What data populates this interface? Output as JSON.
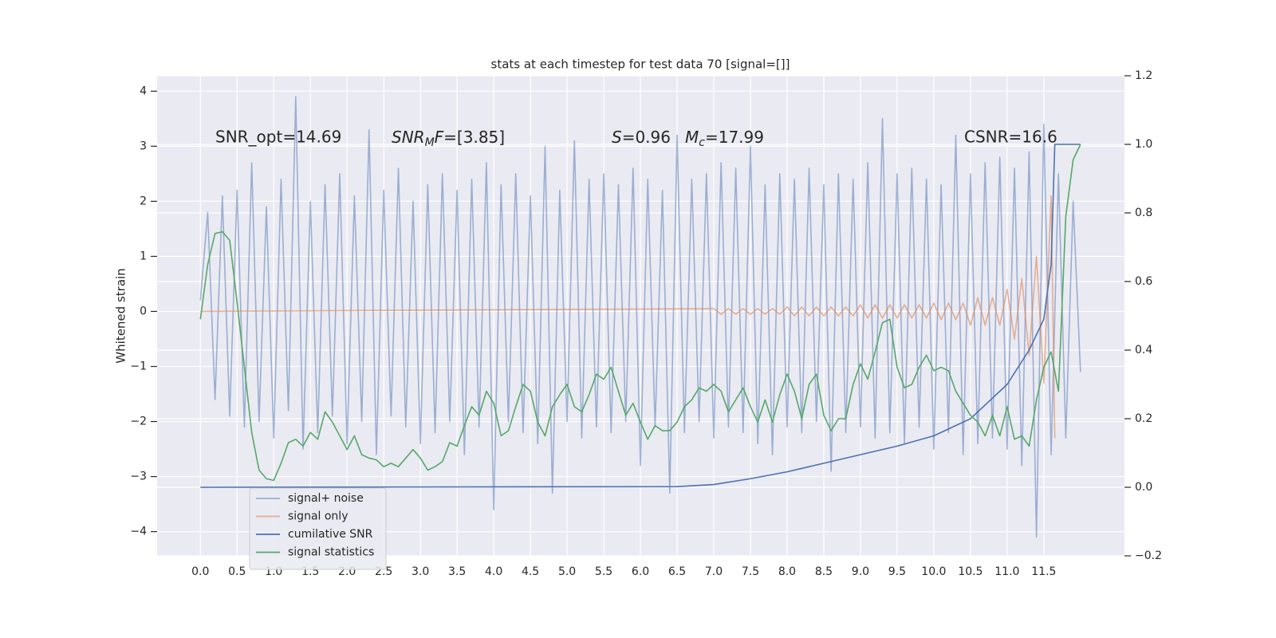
{
  "chart_data": {
    "type": "line",
    "title": "stats at each timestep for test data 70 [signal=[]]",
    "ylabel": "Whitened strain",
    "xlim": [
      -0.59,
      12.6
    ],
    "ylim": [
      -4.44,
      4.28
    ],
    "y2lim": [
      -0.2,
      1.2
    ],
    "grid": true,
    "legend": "lower left",
    "xticks": [
      {
        "value": 0,
        "label": "0.0"
      },
      0.5,
      {
        "value": 1,
        "label": "1.0"
      },
      1.5,
      {
        "value": 2,
        "label": "2.0"
      },
      2.5,
      {
        "value": 3,
        "label": "3.0"
      },
      3.5,
      {
        "value": 4,
        "label": "4.0"
      },
      4.5,
      {
        "value": 5,
        "label": "5.0"
      },
      5.5,
      {
        "value": 6,
        "label": "6.0"
      },
      6.5,
      {
        "value": 7,
        "label": "7.0"
      },
      7.5,
      {
        "value": 8,
        "label": "8.0"
      },
      8.5,
      {
        "value": 9,
        "label": "9.0"
      },
      9.5,
      {
        "value": 10,
        "label": "10.0"
      },
      10.5,
      {
        "value": 11,
        "label": "11.0"
      },
      11.5
    ],
    "yticks": [
      {
        "value": -4,
        "label": "−4"
      },
      {
        "value": -3,
        "label": "−3"
      },
      {
        "value": -2,
        "label": "−2"
      },
      {
        "value": -1,
        "label": "−1"
      },
      0,
      1,
      2,
      3,
      4
    ],
    "y2ticks": [
      {
        "value": -0.2,
        "label": "−0.2"
      },
      {
        "value": 0,
        "label": "0.0"
      },
      0.2,
      0.4,
      0.6,
      0.8,
      {
        "value": 1,
        "label": "1.0"
      },
      1.2
    ],
    "annotations": [
      {
        "text": "SNR_opt=14.69"
      },
      {
        "parts": [
          "SNR",
          "M",
          "F",
          "=[3.85]"
        ]
      },
      {
        "parts": [
          "S",
          "=0.96"
        ]
      },
      {
        "parts": [
          "M",
          "c",
          "=17.99"
        ]
      },
      {
        "text": "CSNR=16.6"
      }
    ],
    "x": [
      0.0,
      0.1,
      0.2,
      0.3,
      0.4,
      0.5,
      0.6,
      0.7,
      0.8,
      0.9,
      1.0,
      1.1,
      1.2,
      1.3,
      1.4,
      1.5,
      1.6,
      1.7,
      1.8,
      1.9,
      2.0,
      2.1,
      2.2,
      2.3,
      2.4,
      2.5,
      2.6,
      2.7,
      2.8,
      2.9,
      3.0,
      3.1,
      3.2,
      3.3,
      3.4,
      3.5,
      3.6,
      3.7,
      3.8,
      3.9,
      4.0,
      4.1,
      4.2,
      4.3,
      4.4,
      4.5,
      4.6,
      4.7,
      4.8,
      4.9,
      5.0,
      5.1,
      5.2,
      5.3,
      5.4,
      5.5,
      5.6,
      5.7,
      5.8,
      5.9,
      6.0,
      6.1,
      6.2,
      6.3,
      6.4,
      6.5,
      6.6,
      6.7,
      6.8,
      6.9,
      7.0,
      7.1,
      7.2,
      7.3,
      7.4,
      7.5,
      7.6,
      7.7,
      7.8,
      7.9,
      8.0,
      8.1,
      8.2,
      8.3,
      8.4,
      8.5,
      8.6,
      8.7,
      8.8,
      8.9,
      9.0,
      9.1,
      9.2,
      9.3,
      9.4,
      9.5,
      9.6,
      9.7,
      9.8,
      9.9,
      10.0,
      10.1,
      10.2,
      10.3,
      10.4,
      10.5,
      10.6,
      10.7,
      10.8,
      10.9,
      11.0,
      11.1,
      11.2,
      11.3,
      11.4,
      11.5,
      11.6,
      11.7,
      11.8,
      11.9,
      12.0
    ],
    "series": [
      {
        "name": "signal+ noise",
        "color": "#4c72b0",
        "alpha": 0.5,
        "values": [
          0.2,
          1.8,
          -1.6,
          2.1,
          -1.9,
          2.2,
          -2.1,
          2.7,
          -2.0,
          1.9,
          -2.3,
          2.4,
          -1.8,
          3.9,
          -2.5,
          2.0,
          -2.2,
          2.3,
          -1.9,
          2.5,
          -2.4,
          2.1,
          -2.0,
          3.3,
          -2.6,
          2.2,
          -1.9,
          2.6,
          -2.1,
          2.0,
          -2.4,
          2.3,
          -2.2,
          2.5,
          -2.0,
          2.2,
          -2.6,
          2.4,
          -2.1,
          2.7,
          -3.6,
          2.3,
          -2.0,
          2.5,
          -2.2,
          2.1,
          -2.4,
          3.0,
          -3.3,
          2.2,
          -2.0,
          3.1,
          -2.3,
          2.4,
          -2.1,
          2.5,
          -2.2,
          2.3,
          -2.0,
          2.6,
          -2.8,
          2.4,
          -2.1,
          2.2,
          -3.3,
          3.2,
          -2.2,
          2.4,
          -2.0,
          2.5,
          -2.3,
          2.7,
          -2.1,
          2.6,
          -2.2,
          3.0,
          -2.4,
          2.3,
          -2.6,
          2.5,
          -2.1,
          2.4,
          -2.2,
          2.6,
          -2.0,
          2.3,
          -2.9,
          2.5,
          -2.2,
          2.4,
          -2.1,
          2.7,
          -2.3,
          3.5,
          -2.2,
          2.5,
          -2.4,
          2.6,
          -2.1,
          2.4,
          -2.5,
          2.3,
          -2.2,
          3.2,
          -2.6,
          2.5,
          -2.4,
          2.7,
          -2.3,
          2.8,
          -2.5,
          2.6,
          -2.8,
          2.9,
          -4.1,
          3.4,
          -2.6,
          2.5,
          -2.3,
          2.0,
          -1.1
        ]
      },
      {
        "name": "signal only",
        "color": "#dd8452",
        "alpha": 0.6,
        "x": [
          0,
          7.0,
          7.1,
          7.2,
          7.3,
          7.4,
          7.5,
          7.6,
          7.7,
          7.8,
          7.9,
          8.0,
          8.1,
          8.2,
          8.3,
          8.4,
          8.5,
          8.6,
          8.7,
          8.8,
          8.9,
          9.0,
          9.1,
          9.2,
          9.3,
          9.4,
          9.5,
          9.6,
          9.7,
          9.8,
          9.9,
          10.0,
          10.1,
          10.2,
          10.3,
          10.4,
          10.5,
          10.6,
          10.7,
          10.8,
          10.9,
          11.0,
          11.1,
          11.2,
          11.3,
          11.4,
          11.5,
          11.6,
          11.65
        ],
        "values": [
          0,
          0.05,
          -0.05,
          0.05,
          -0.05,
          0.05,
          -0.05,
          0.05,
          -0.05,
          0.05,
          -0.05,
          0.08,
          -0.08,
          0.08,
          -0.08,
          0.08,
          -0.08,
          0.08,
          -0.08,
          0.08,
          -0.08,
          0.12,
          -0.12,
          0.12,
          -0.12,
          0.12,
          -0.12,
          0.12,
          -0.12,
          0.12,
          -0.12,
          0.15,
          -0.15,
          0.15,
          -0.15,
          0.15,
          -0.25,
          0.25,
          -0.25,
          0.25,
          -0.25,
          0.4,
          -0.5,
          0.6,
          -0.8,
          1.0,
          -1.3,
          2.1,
          -2.3
        ]
      },
      {
        "name": "cumilative SNR",
        "color": "#4c72b0",
        "alpha": 1,
        "axis": "y2",
        "x": [
          0,
          6.5,
          7.0,
          7.5,
          8.0,
          8.5,
          9.0,
          9.5,
          10.0,
          10.5,
          11.0,
          11.3,
          11.5,
          11.6,
          11.65,
          11.7,
          12.0
        ],
        "values": [
          0,
          0.002,
          0.008,
          0.025,
          0.045,
          0.07,
          0.095,
          0.12,
          0.15,
          0.2,
          0.3,
          0.4,
          0.49,
          0.65,
          1.0,
          1.0,
          1.0
        ]
      },
      {
        "name": "signal statistics",
        "color": "#55a868",
        "alpha": 1,
        "axis": "y2",
        "values": [
          0.49,
          0.65,
          0.74,
          0.745,
          0.72,
          0.54,
          0.35,
          0.16,
          0.05,
          0.025,
          0.02,
          0.07,
          0.13,
          0.14,
          0.12,
          0.16,
          0.14,
          0.22,
          0.19,
          0.15,
          0.11,
          0.15,
          0.095,
          0.085,
          0.08,
          0.06,
          0.07,
          0.06,
          0.085,
          0.11,
          0.085,
          0.05,
          0.06,
          0.075,
          0.13,
          0.12,
          0.18,
          0.235,
          0.21,
          0.28,
          0.245,
          0.15,
          0.165,
          0.235,
          0.3,
          0.28,
          0.19,
          0.15,
          0.235,
          0.27,
          0.3,
          0.235,
          0.22,
          0.27,
          0.33,
          0.315,
          0.35,
          0.28,
          0.21,
          0.245,
          0.19,
          0.14,
          0.18,
          0.165,
          0.165,
          0.19,
          0.235,
          0.255,
          0.29,
          0.28,
          0.3,
          0.28,
          0.22,
          0.255,
          0.29,
          0.235,
          0.19,
          0.255,
          0.19,
          0.27,
          0.33,
          0.28,
          0.2,
          0.3,
          0.33,
          0.21,
          0.165,
          0.2,
          0.2,
          0.3,
          0.36,
          0.315,
          0.395,
          0.48,
          0.49,
          0.35,
          0.29,
          0.3,
          0.35,
          0.385,
          0.34,
          0.35,
          0.34,
          0.28,
          0.245,
          0.21,
          0.19,
          0.15,
          0.21,
          0.15,
          0.235,
          0.14,
          0.15,
          0.12,
          0.255,
          0.35,
          0.395,
          0.28,
          0.79,
          0.955,
          1.0
        ]
      }
    ]
  }
}
